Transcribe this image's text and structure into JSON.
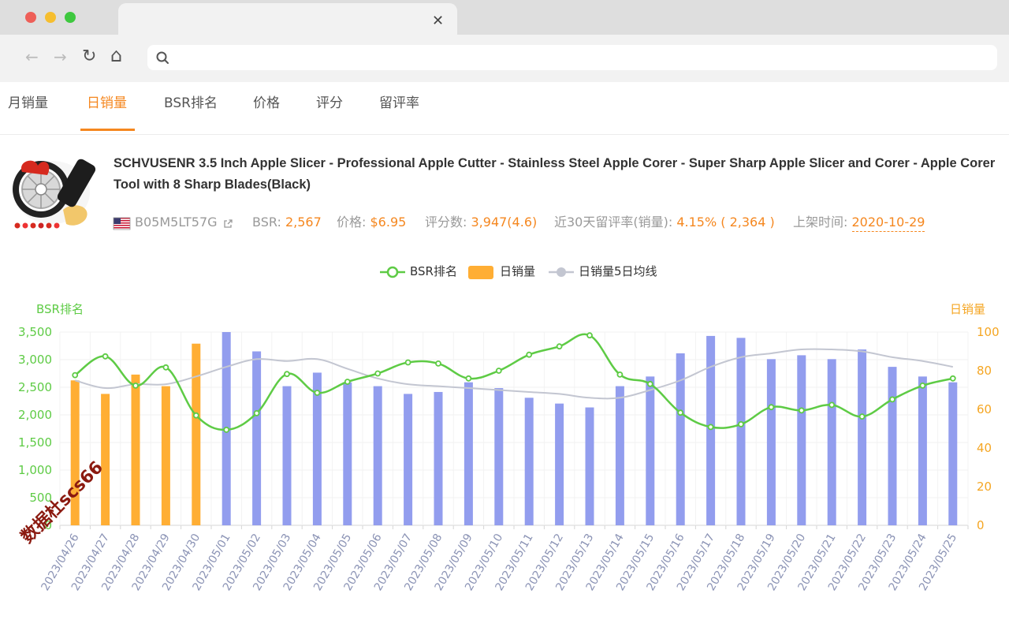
{
  "browser": {
    "tab_close": "✕",
    "back_icon": "←",
    "forward_icon": "→",
    "reload_icon": "↻",
    "home_icon": "⌂",
    "search_icon": "search-icon",
    "url_value": ""
  },
  "nav": {
    "tabs": [
      "月销量",
      "日销量",
      "BSR排名",
      "价格",
      "评分",
      "留评率"
    ],
    "active": "日销量"
  },
  "product": {
    "title": "SCHVUSENR 3.5 Inch Apple Slicer - Professional Apple Cutter - Stainless Steel Apple Corer - Super Sharp Apple Slicer and Corer - Apple Corer Tool with 8 Sharp Blades(Black)",
    "asin": "B05M5LT57G",
    "bsr_label": "BSR:",
    "bsr_value": "2,567",
    "price_label": "价格:",
    "price_value": "$6.95",
    "rating_label": "评分数:",
    "rating_value": "3,947(4.6)",
    "review_rate_label": "近30天留评率(销量):",
    "review_rate_value": "4.15% ( 2,364 )",
    "listed_label": "上架时间:",
    "listed_value": "2020-10-29"
  },
  "colors": {
    "accent": "#f5871f",
    "bsr_line": "#5ecb45",
    "sales_past": "#ffae34",
    "sales_future": "#929dee",
    "ma_line": "#c3c6d1"
  },
  "chart_data": {
    "type": "bar",
    "legend": [
      "BSR排名",
      "日销量",
      "日销量5日均线"
    ],
    "left_axis_name": "BSR排名",
    "right_axis_name": "日销量",
    "left_ylim": [
      0,
      3500
    ],
    "right_ylim": [
      0,
      100
    ],
    "left_ticks": [
      "0",
      "500",
      "1,000",
      "1,500",
      "2,000",
      "2,500",
      "3,000",
      "3,500"
    ],
    "right_ticks": [
      "0",
      "20",
      "40",
      "60",
      "80",
      "100"
    ],
    "categories": [
      "2023/04/26",
      "2023/04/27",
      "2023/04/28",
      "2023/04/29",
      "2023/04/30",
      "2023/05/01",
      "2023/05/02",
      "2023/05/03",
      "2023/05/04",
      "2023/05/05",
      "2023/05/06",
      "2023/05/07",
      "2023/05/08",
      "2023/05/09",
      "2023/05/10",
      "2023/05/11",
      "2023/05/12",
      "2023/05/13",
      "2023/05/14",
      "2023/05/15",
      "2023/05/16",
      "2023/05/17",
      "2023/05/18",
      "2023/05/19",
      "2023/05/20",
      "2023/05/21",
      "2023/05/22",
      "2023/05/23",
      "2023/05/24",
      "2023/05/25"
    ],
    "series": [
      {
        "name": "BSR排名",
        "axis": "left",
        "type": "line",
        "values": [
          2720,
          3060,
          2530,
          2860,
          1990,
          1730,
          2030,
          2740,
          2400,
          2600,
          2750,
          2950,
          2930,
          2660,
          2800,
          3090,
          3240,
          3440,
          2730,
          2560,
          2040,
          1780,
          1830,
          2140,
          2080,
          2180,
          1970,
          2280,
          2530,
          2660
        ]
      },
      {
        "name": "日销量",
        "axis": "right",
        "type": "bar",
        "values": [
          75,
          68,
          78,
          72,
          94,
          100,
          90,
          72,
          79,
          74,
          72,
          68,
          69,
          74,
          71,
          66,
          63,
          61,
          72,
          77,
          89,
          98,
          97,
          86,
          88,
          86,
          91,
          82,
          77,
          74
        ],
        "past_count": 5
      },
      {
        "name": "日销量5日均线",
        "axis": "right",
        "type": "line",
        "values": [
          75,
          71,
          73,
          73,
          77,
          82,
          86,
          85,
          86,
          81,
          76,
          73,
          72,
          71,
          70,
          69,
          68,
          66,
          66,
          70,
          75,
          82,
          87,
          89,
          91,
          91,
          90,
          87,
          85,
          82
        ]
      }
    ]
  },
  "watermark": "数据杜scs66"
}
